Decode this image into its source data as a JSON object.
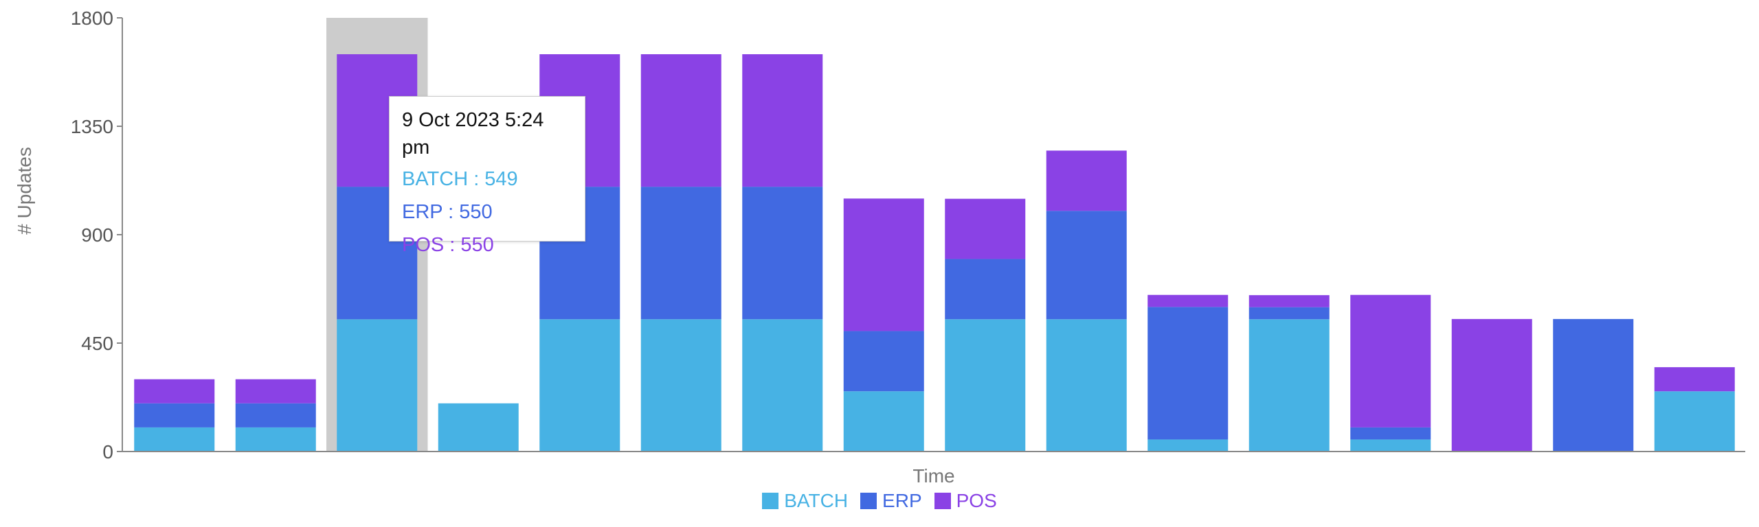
{
  "chart_data": {
    "type": "bar",
    "stacked": true,
    "xlabel": "Time",
    "ylabel": "# Updates",
    "ylim": [
      0,
      1800
    ],
    "yticks": [
      0,
      450,
      900,
      1350,
      1800
    ],
    "categories": [
      "",
      "",
      "",
      "",
      "",
      "",
      "",
      "",
      "",
      "",
      "",
      "",
      "",
      "",
      "",
      ""
    ],
    "series": [
      {
        "name": "BATCH",
        "color": "#47b2e4",
        "values": [
          100,
          100,
          549,
          200,
          549,
          549,
          549,
          250,
          549,
          549,
          50,
          549,
          50,
          0,
          0,
          250
        ]
      },
      {
        "name": "ERP",
        "color": "#4169e1",
        "values": [
          100,
          100,
          550,
          0,
          550,
          550,
          550,
          250,
          250,
          450,
          550,
          50,
          50,
          0,
          550,
          0
        ]
      },
      {
        "name": "POS",
        "color": "#8a42e5",
        "values": [
          100,
          100,
          550,
          0,
          550,
          550,
          550,
          550,
          250,
          250,
          50,
          50,
          550,
          550,
          0,
          100
        ]
      }
    ],
    "highlighted_index": 2,
    "legend_position": "bottom-center",
    "tooltip": {
      "title": "9 Oct 2023 5:24 pm",
      "lines": [
        "BATCH : 549",
        "ERP : 550",
        "POS : 550"
      ]
    }
  }
}
